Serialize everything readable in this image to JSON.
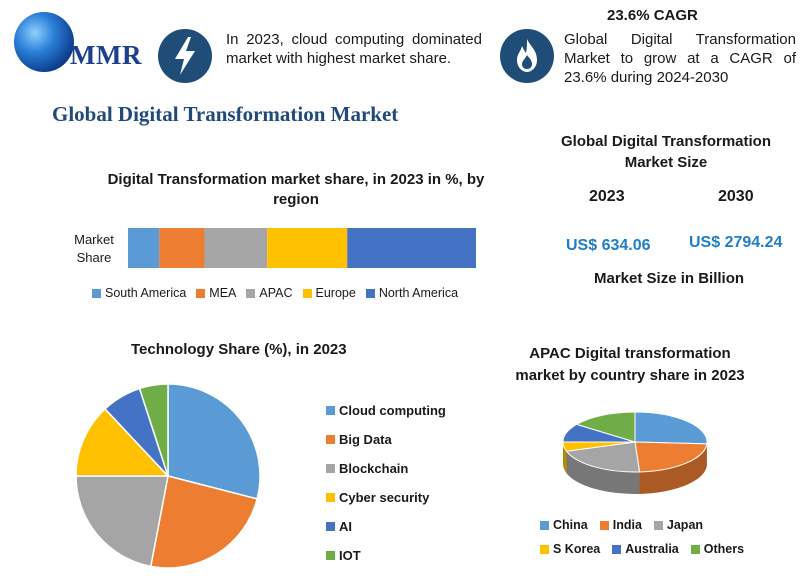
{
  "header": {
    "logo_text": "MMR",
    "stat_1": "In 2023, cloud computing dominated market with highest market share.",
    "cagr_title": "23.6% CAGR",
    "stat_2": "Global Digital Transformation Market to grow at a CAGR of 23.6% during 2024-2030"
  },
  "main_title": "Global Digital Transformation Market",
  "market_size": {
    "title": "Global Digital Transformation Market Size",
    "years": [
      "2023",
      "2030"
    ],
    "values": [
      "US$ 634.06",
      "US$ 2794.24"
    ],
    "unit_label": "Market Size in Billion",
    "value_color": "#1e7fc6"
  },
  "chart_data": [
    {
      "type": "bar",
      "stacked": true,
      "orientation": "horizontal",
      "title": "Digital Transformation market share, in 2023 in %, by region",
      "categories": [
        "Market Share"
      ],
      "series": [
        {
          "name": "South America",
          "values": [
            9
          ],
          "color": "#5b9bd5"
        },
        {
          "name": "MEA",
          "values": [
            13
          ],
          "color": "#ed7d31"
        },
        {
          "name": "APAC",
          "values": [
            18
          ],
          "color": "#a5a5a5"
        },
        {
          "name": "Europe",
          "values": [
            23
          ],
          "color": "#ffc000"
        },
        {
          "name": "North America",
          "values": [
            37
          ],
          "color": "#4472c4"
        }
      ],
      "legend": "bottom"
    },
    {
      "type": "pie",
      "title": "Technology Share (%), in 2023",
      "labels": [
        "Cloud computing",
        "Big Data",
        "Blockchain",
        "Cyber security",
        "AI",
        "IOT"
      ],
      "values": [
        29,
        24,
        22,
        13,
        7,
        5
      ],
      "colors": [
        "#5b9bd5",
        "#ed7d31",
        "#a5a5a5",
        "#ffc000",
        "#4472c4",
        "#70ad47"
      ],
      "legend": "right"
    },
    {
      "type": "pie",
      "style": "3d",
      "title": "APAC Digital transformation market by country share in 2023",
      "labels": [
        "China",
        "India",
        "Japan",
        "S Korea",
        "Australia",
        "Others"
      ],
      "values": [
        26,
        23,
        21,
        5,
        10,
        15
      ],
      "colors": [
        "#5b9bd5",
        "#ed7d31",
        "#a5a5a5",
        "#ffc000",
        "#4472c4",
        "#70ad47"
      ],
      "legend": "bottom"
    }
  ]
}
